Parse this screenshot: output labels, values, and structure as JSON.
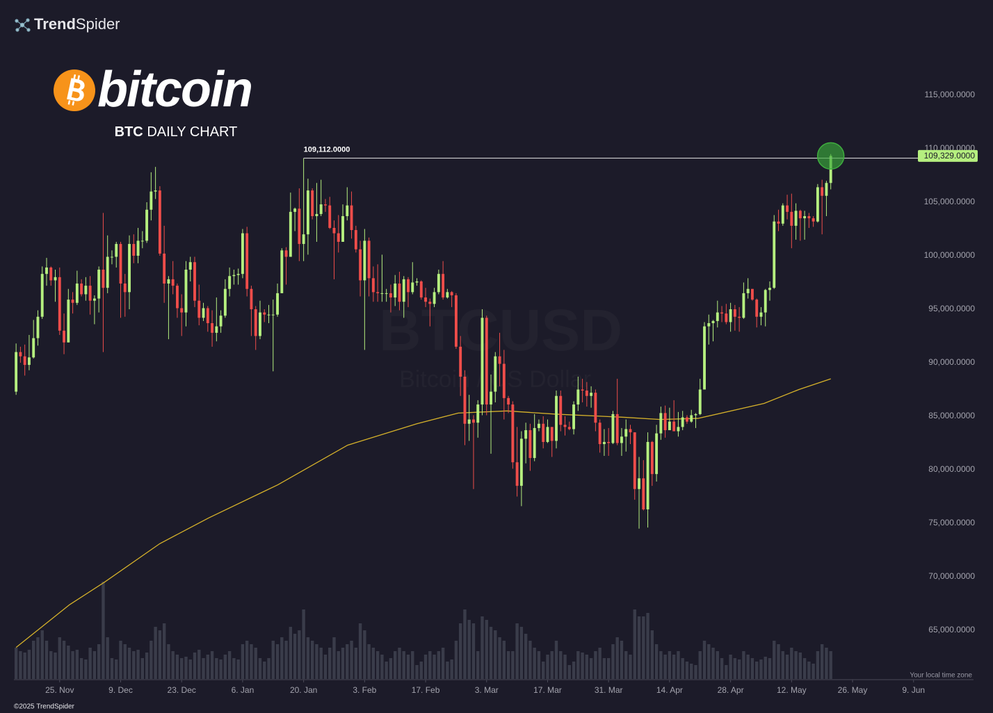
{
  "chart_data": {
    "type": "candlestick",
    "brand_bold": "Trend",
    "brand": "Spider",
    "logo_text": "bitcoin",
    "subtitle_bold": "BTC",
    "subtitle": "DAILY CHART",
    "watermark": "BTCUSD",
    "watermark_sub": "Bitcoin / US Dollar",
    "timezone_note": "Your local time zone",
    "copyright": "©2025 TrendSpider",
    "up_color": "#b5ef7f",
    "down_color": "#ef4d4a",
    "volume_color": "#3a3c4a",
    "ma_color": "#d6b22a",
    "ylim": [
      60000,
      120000
    ],
    "yticks": [
      {
        "value": 65000,
        "label": "65,000.0000"
      },
      {
        "value": 70000,
        "label": "70,000.0000"
      },
      {
        "value": 75000,
        "label": "75,000.0000"
      },
      {
        "value": 80000,
        "label": "80,000.0000"
      },
      {
        "value": 85000,
        "label": "85,000.0000"
      },
      {
        "value": 90000,
        "label": "90,000.0000"
      },
      {
        "value": 95000,
        "label": "95,000.0000"
      },
      {
        "value": 100000,
        "label": "100,000.0000"
      },
      {
        "value": 105000,
        "label": "105,000.0000"
      },
      {
        "value": 110000,
        "label": "110,000.0000"
      },
      {
        "value": 115000,
        "label": "115,000.0000"
      }
    ],
    "xlim": [
      -0.5,
      207
    ],
    "xticks": [
      {
        "value": 10,
        "label": "25. Nov"
      },
      {
        "value": 24,
        "label": "9. Dec"
      },
      {
        "value": 38,
        "label": "23. Dec"
      },
      {
        "value": 52,
        "label": "6. Jan"
      },
      {
        "value": 66,
        "label": "20. Jan"
      },
      {
        "value": 80,
        "label": "3. Feb"
      },
      {
        "value": 94,
        "label": "17. Feb"
      },
      {
        "value": 108,
        "label": "3. Mar"
      },
      {
        "value": 122,
        "label": "17. Mar"
      },
      {
        "value": 136,
        "label": "31. Mar"
      },
      {
        "value": 150,
        "label": "14. Apr"
      },
      {
        "value": 164,
        "label": "28. Apr"
      },
      {
        "value": 178,
        "label": "12. May"
      },
      {
        "value": 192,
        "label": "26. May"
      },
      {
        "value": 206,
        "label": "9. Jun"
      }
    ],
    "high_marker": {
      "x": 66,
      "value": 109112,
      "label": "109,112.0000"
    },
    "last_price": {
      "x": 187,
      "value": 109329,
      "label": "109,329.0000"
    },
    "ohlc": [
      [
        87300,
        91800,
        87000,
        91000
      ],
      [
        91000,
        91500,
        90000,
        90600
      ],
      [
        90600,
        91700,
        88800,
        89800
      ],
      [
        89800,
        92600,
        89300,
        90500
      ],
      [
        90500,
        94000,
        90400,
        92300
      ],
      [
        92300,
        94900,
        91600,
        94300
      ],
      [
        94300,
        99000,
        94100,
        98300
      ],
      [
        98300,
        99800,
        97200,
        98900
      ],
      [
        98900,
        99000,
        97200,
        97700
      ],
      [
        97700,
        98700,
        95700,
        98000
      ],
      [
        98000,
        98900,
        92600,
        93000
      ],
      [
        93000,
        94600,
        90800,
        91900
      ],
      [
        91900,
        96900,
        91900,
        95900
      ],
      [
        95900,
        96600,
        94600,
        95600
      ],
      [
        95600,
        98600,
        95400,
        97400
      ],
      [
        97400,
        97800,
        96200,
        96400
      ],
      [
        96400,
        98000,
        95800,
        97200
      ],
      [
        97200,
        98100,
        94500,
        95800
      ],
      [
        95800,
        96300,
        93600,
        96000
      ],
      [
        96000,
        99000,
        94700,
        98700
      ],
      [
        98700,
        104000,
        91000,
        97000
      ],
      [
        97000,
        101900,
        96500,
        99900
      ],
      [
        99900,
        100500,
        99200,
        99900
      ],
      [
        99900,
        101300,
        98900,
        101100
      ],
      [
        101100,
        101300,
        94200,
        97400
      ],
      [
        97400,
        98300,
        94300,
        96600
      ],
      [
        96600,
        101900,
        95000,
        101100
      ],
      [
        101100,
        102000,
        99300,
        100000
      ],
      [
        100000,
        102600,
        99300,
        101400
      ],
      [
        101400,
        102300,
        100700,
        101400
      ],
      [
        101400,
        105000,
        101200,
        104300
      ],
      [
        104300,
        107800,
        103300,
        106000
      ],
      [
        106000,
        108300,
        105300,
        106100
      ],
      [
        106100,
        106500,
        100000,
        100200
      ],
      [
        100200,
        102800,
        95600,
        97400
      ],
      [
        97400,
        98100,
        92200,
        97800
      ],
      [
        97800,
        99500,
        96400,
        97200
      ],
      [
        97200,
        97400,
        94200,
        95100
      ],
      [
        95100,
        96400,
        92500,
        94700
      ],
      [
        94700,
        99500,
        93400,
        98700
      ],
      [
        98700,
        99900,
        97600,
        99400
      ],
      [
        99400,
        99900,
        95200,
        95800
      ],
      [
        95800,
        97300,
        93500,
        94200
      ],
      [
        94200,
        95600,
        93900,
        95100
      ],
      [
        95100,
        95300,
        92900,
        93700
      ],
      [
        93700,
        94900,
        91500,
        92800
      ],
      [
        92800,
        96100,
        92000,
        93400
      ],
      [
        93400,
        94900,
        92800,
        94400
      ],
      [
        94400,
        97800,
        94200,
        96900
      ],
      [
        96900,
        98900,
        96200,
        98100
      ],
      [
        98100,
        98700,
        97300,
        98200
      ],
      [
        98200,
        98800,
        97300,
        98300
      ],
      [
        98300,
        102500,
        97900,
        102100
      ],
      [
        102100,
        102700,
        96200,
        96900
      ],
      [
        96900,
        97200,
        92500,
        95000
      ],
      [
        95000,
        95300,
        91200,
        92500
      ],
      [
        92500,
        95800,
        92200,
        94700
      ],
      [
        94700,
        95000,
        93800,
        94500
      ],
      [
        94500,
        95400,
        93700,
        94500
      ],
      [
        94500,
        95900,
        89200,
        94500
      ],
      [
        94500,
        97400,
        94300,
        96500
      ],
      [
        96500,
        100700,
        96500,
        100500
      ],
      [
        100500,
        100800,
        97300,
        99900
      ],
      [
        99900,
        105900,
        99900,
        104100
      ],
      [
        104100,
        104500,
        102300,
        104400
      ],
      [
        104400,
        106300,
        99500,
        101100
      ],
      [
        101100,
        109100,
        99500,
        102000
      ],
      [
        102000,
        107200,
        100100,
        106100
      ],
      [
        106100,
        106300,
        103400,
        103700
      ],
      [
        103700,
        106800,
        101300,
        103900
      ],
      [
        103900,
        107100,
        103700,
        104800
      ],
      [
        104800,
        105300,
        104100,
        104700
      ],
      [
        104700,
        105500,
        102500,
        102600
      ],
      [
        102600,
        103300,
        97800,
        102100
      ],
      [
        102100,
        103800,
        100300,
        101300
      ],
      [
        101300,
        104800,
        101300,
        103700
      ],
      [
        103700,
        106400,
        103300,
        104700
      ],
      [
        104700,
        106000,
        101600,
        102400
      ],
      [
        102400,
        102800,
        100300,
        100600
      ],
      [
        100600,
        101400,
        96200,
        97700
      ],
      [
        97700,
        102500,
        91200,
        101400
      ],
      [
        101400,
        101700,
        96200,
        97900
      ],
      [
        97900,
        99000,
        95700,
        96600
      ],
      [
        96600,
        99200,
        95700,
        96500
      ],
      [
        96500,
        100100,
        95700,
        96500
      ],
      [
        96500,
        96900,
        95700,
        96500
      ],
      [
        96500,
        97300,
        94700,
        96100
      ],
      [
        96100,
        98200,
        95300,
        97400
      ],
      [
        97400,
        98500,
        94900,
        95700
      ],
      [
        95700,
        98100,
        94200,
        97800
      ],
      [
        97800,
        98000,
        95200,
        96600
      ],
      [
        96600,
        99400,
        96400,
        97500
      ],
      [
        97500,
        97900,
        97200,
        97600
      ],
      [
        97600,
        97700,
        95900,
        96100
      ],
      [
        96100,
        97000,
        95200,
        95700
      ],
      [
        95700,
        96000,
        93400,
        95500
      ],
      [
        95500,
        97000,
        95200,
        96600
      ],
      [
        96600,
        98700,
        96400,
        98300
      ],
      [
        98300,
        99500,
        95900,
        96100
      ],
      [
        96100,
        96900,
        96000,
        96600
      ],
      [
        96600,
        96700,
        95200,
        96300
      ],
      [
        96300,
        96500,
        91300,
        91500
      ],
      [
        91500,
        92500,
        86900,
        88700
      ],
      [
        88700,
        89300,
        82300,
        84300
      ],
      [
        84300,
        87000,
        82700,
        84700
      ],
      [
        84700,
        85100,
        78200,
        84400
      ],
      [
        84400,
        86500,
        83000,
        86100
      ],
      [
        86100,
        95000,
        85100,
        94200
      ],
      [
        94200,
        94400,
        85100,
        86100
      ],
      [
        86100,
        88900,
        81500,
        87300
      ],
      [
        87300,
        91000,
        86300,
        90600
      ],
      [
        90600,
        92800,
        87800,
        89900
      ],
      [
        89900,
        91200,
        84700,
        86700
      ],
      [
        86700,
        86900,
        85300,
        86100
      ],
      [
        86100,
        86400,
        80100,
        80700
      ],
      [
        80700,
        84000,
        77500,
        78500
      ],
      [
        78500,
        83600,
        76600,
        82900
      ],
      [
        82900,
        84400,
        80600,
        83700
      ],
      [
        83700,
        84300,
        79900,
        81100
      ],
      [
        81100,
        85200,
        80800,
        83900
      ],
      [
        83900,
        84700,
        83600,
        84300
      ],
      [
        84300,
        85000,
        82000,
        82600
      ],
      [
        82600,
        84700,
        82500,
        84000
      ],
      [
        84000,
        84000,
        81200,
        82700
      ],
      [
        82700,
        87400,
        82000,
        86900
      ],
      [
        86900,
        87400,
        83600,
        84200
      ],
      [
        84200,
        85000,
        83200,
        84000
      ],
      [
        84000,
        84500,
        83700,
        83800
      ],
      [
        83800,
        86400,
        83300,
        86100
      ],
      [
        86100,
        88700,
        85500,
        87500
      ],
      [
        87500,
        88500,
        86300,
        87400
      ],
      [
        87400,
        88200,
        85900,
        86900
      ],
      [
        86900,
        87800,
        85800,
        87200
      ],
      [
        87200,
        87500,
        83600,
        84400
      ],
      [
        84400,
        84700,
        81600,
        82400
      ],
      [
        82400,
        83800,
        81300,
        82600
      ],
      [
        82600,
        83900,
        81300,
        82500
      ],
      [
        82500,
        85500,
        82400,
        85200
      ],
      [
        85200,
        88500,
        82300,
        82500
      ],
      [
        82500,
        83900,
        81300,
        83100
      ],
      [
        83100,
        84700,
        81700,
        83800
      ],
      [
        83800,
        84200,
        82400,
        83500
      ],
      [
        83500,
        83500,
        77200,
        78200
      ],
      [
        78200,
        81200,
        74500,
        79200
      ],
      [
        79200,
        80900,
        76200,
        76300
      ],
      [
        76300,
        83500,
        74600,
        82600
      ],
      [
        82600,
        82700,
        78500,
        79600
      ],
      [
        79600,
        84200,
        78900,
        83400
      ],
      [
        83400,
        85900,
        82800,
        85300
      ],
      [
        85300,
        86000,
        83000,
        83700
      ],
      [
        83700,
        85800,
        83700,
        84500
      ],
      [
        84500,
        86500,
        83600,
        83600
      ],
      [
        83600,
        85400,
        83100,
        84000
      ],
      [
        84000,
        85500,
        83700,
        84900
      ],
      [
        84900,
        85100,
        84300,
        84500
      ],
      [
        84500,
        85600,
        84400,
        85100
      ],
      [
        85100,
        85300,
        83900,
        85200
      ],
      [
        85200,
        88500,
        85100,
        87500
      ],
      [
        87500,
        93800,
        87600,
        93400
      ],
      [
        93400,
        94500,
        91700,
        93700
      ],
      [
        93700,
        94000,
        92000,
        93900
      ],
      [
        93900,
        95800,
        93300,
        94700
      ],
      [
        94700,
        95300,
        93800,
        94600
      ],
      [
        94600,
        95500,
        93600,
        93800
      ],
      [
        93800,
        95600,
        92900,
        95000
      ],
      [
        95000,
        95400,
        93000,
        94300
      ],
      [
        94300,
        95200,
        92900,
        94200
      ],
      [
        94200,
        97500,
        94100,
        96500
      ],
      [
        96500,
        97900,
        96000,
        96900
      ],
      [
        96900,
        96900,
        95800,
        95900
      ],
      [
        95900,
        96000,
        93300,
        94300
      ],
      [
        94300,
        95200,
        93500,
        94700
      ],
      [
        94700,
        96900,
        93400,
        96800
      ],
      [
        96800,
        97600,
        95800,
        97000
      ],
      [
        97000,
        103800,
        96900,
        103200
      ],
      [
        103200,
        104300,
        102300,
        103000
      ],
      [
        103000,
        104900,
        102800,
        104700
      ],
      [
        104700,
        105700,
        103400,
        104100
      ],
      [
        104100,
        105800,
        100700,
        102800
      ],
      [
        102800,
        104900,
        101500,
        104200
      ],
      [
        104200,
        104300,
        101400,
        103500
      ],
      [
        103500,
        104200,
        101500,
        103700
      ],
      [
        103700,
        104000,
        102600,
        103500
      ],
      [
        103500,
        103700,
        102700,
        103200
      ],
      [
        103200,
        106700,
        103100,
        106400
      ],
      [
        106400,
        107100,
        102000,
        105600
      ],
      [
        105600,
        107000,
        103700,
        106800
      ],
      [
        106800,
        109500,
        106200,
        109329
      ]
    ],
    "volume_lim": [
      0,
      150
    ],
    "volume": [
      45,
      40,
      38,
      42,
      55,
      60,
      70,
      55,
      40,
      38,
      60,
      55,
      48,
      40,
      42,
      30,
      28,
      45,
      40,
      50,
      140,
      60,
      30,
      28,
      55,
      50,
      45,
      40,
      42,
      30,
      38,
      55,
      75,
      70,
      80,
      50,
      40,
      35,
      30,
      32,
      28,
      38,
      42,
      30,
      35,
      40,
      30,
      28,
      35,
      40,
      30,
      28,
      50,
      55,
      50,
      45,
      30,
      25,
      30,
      55,
      50,
      60,
      55,
      75,
      65,
      70,
      100,
      60,
      55,
      50,
      45,
      35,
      45,
      60,
      40,
      45,
      50,
      55,
      45,
      80,
      70,
      50,
      45,
      40,
      35,
      25,
      30,
      40,
      45,
      40,
      35,
      40,
      20,
      25,
      35,
      40,
      35,
      40,
      45,
      25,
      28,
      55,
      80,
      100,
      85,
      80,
      40,
      90,
      85,
      75,
      70,
      60,
      55,
      40,
      40,
      80,
      75,
      65,
      55,
      45,
      40,
      25,
      35,
      40,
      55,
      40,
      35,
      20,
      25,
      40,
      38,
      35,
      30,
      40,
      45,
      30,
      30,
      50,
      60,
      55,
      40,
      35,
      100,
      90,
      90,
      95,
      70,
      50,
      40,
      35,
      40,
      35,
      40,
      30,
      25,
      22,
      20,
      40,
      55,
      50,
      45,
      40,
      30,
      20,
      35,
      30,
      28,
      40,
      35,
      30,
      25,
      28,
      32,
      30,
      55,
      50,
      40,
      35,
      45,
      40,
      38,
      30,
      25,
      22,
      40,
      50,
      45,
      40
    ],
    "moving_average": {
      "x": [
        0,
        12.3,
        20.3,
        33.0,
        44.2,
        60.1,
        76.1,
        92.0,
        101.5,
        112.7,
        123.8,
        139.8,
        147.8,
        156.5,
        171.7,
        179.7,
        187
      ],
      "values": [
        63400,
        67400,
        69500,
        73100,
        75500,
        78600,
        82300,
        84300,
        85300,
        85500,
        85200,
        84900,
        84700,
        84800,
        86200,
        87500,
        88500
      ]
    }
  }
}
